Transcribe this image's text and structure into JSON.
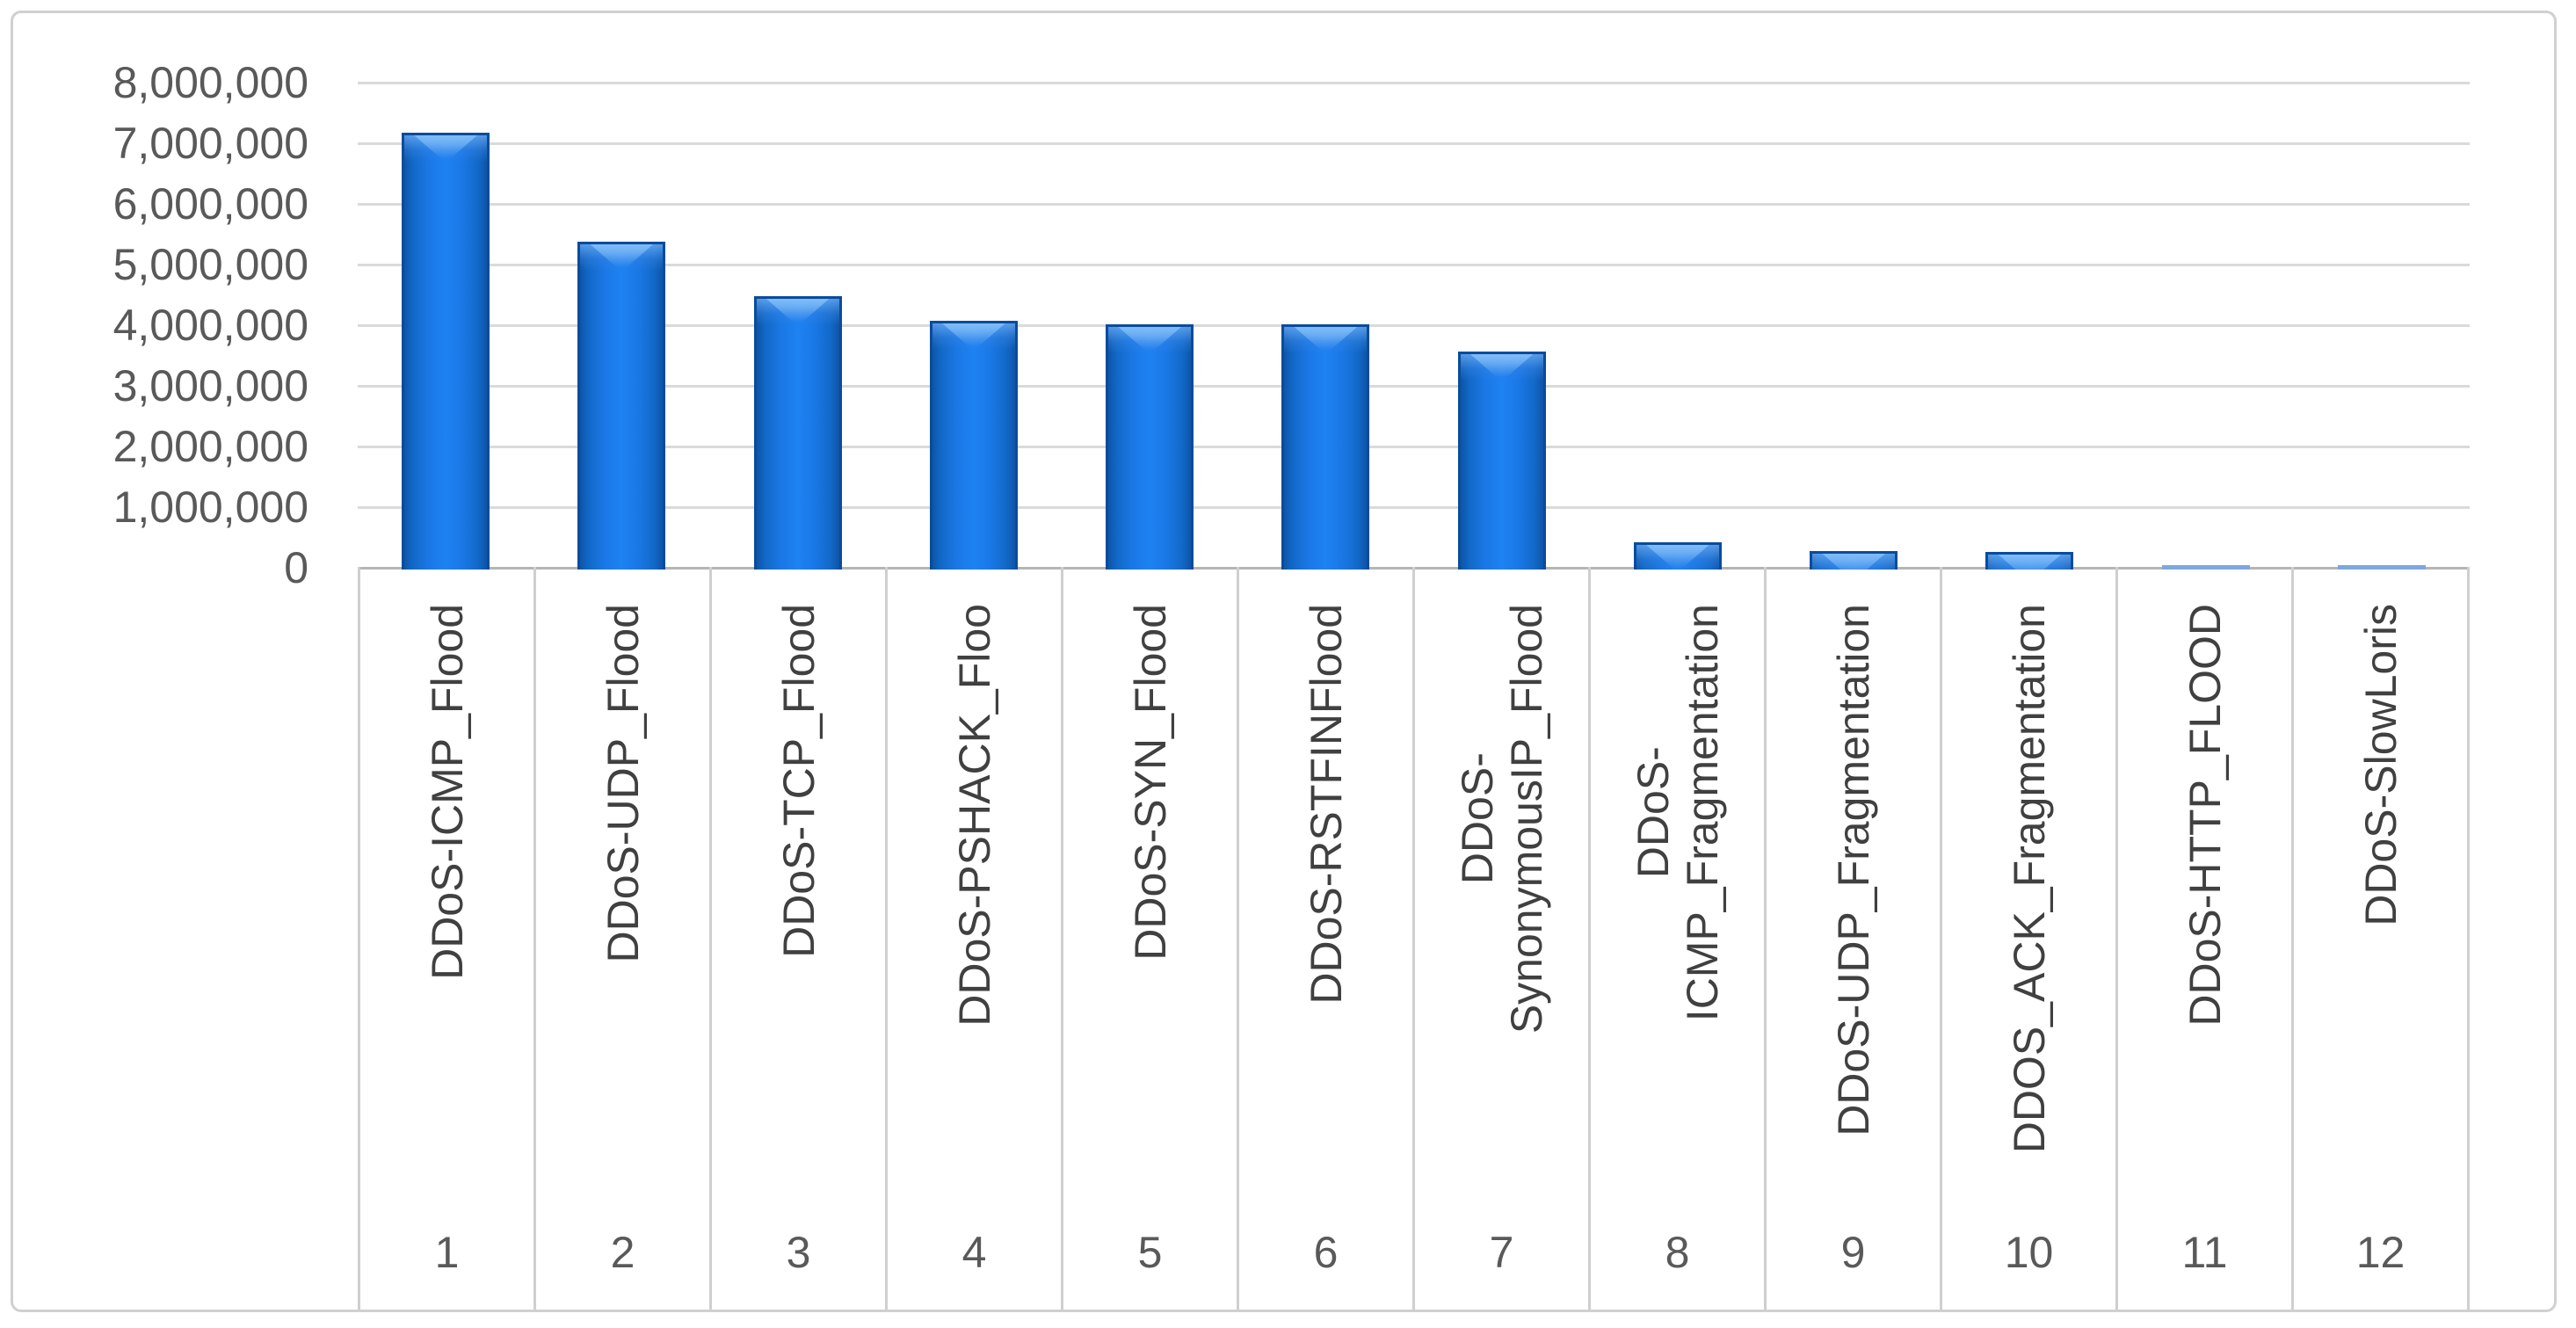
{
  "chart_data": {
    "type": "bar",
    "title": "",
    "categories": [
      {
        "index": "1",
        "label": "DDoS-ICMP_Flood",
        "value": 7200000
      },
      {
        "index": "2",
        "label": "DDoS-UDP_Flood",
        "value": 5400000
      },
      {
        "index": "3",
        "label": "DDoS-TCP_Flood",
        "value": 4500000
      },
      {
        "index": "4",
        "label": "DDoS-PSHACK_Floo",
        "value": 4100000
      },
      {
        "index": "5",
        "label": "DDoS-SYN_Flood",
        "value": 4050000
      },
      {
        "index": "6",
        "label": "DDoS-RSTFINFlood",
        "value": 4050000
      },
      {
        "index": "7",
        "label": "DDoS-\nSynonymousIP_Flood",
        "value": 3600000
      },
      {
        "index": "8",
        "label": "DDoS-\nICMP_Fragmentation",
        "value": 450000
      },
      {
        "index": "9",
        "label": "DDoS-UDP_Fragmentation",
        "value": 300000
      },
      {
        "index": "10",
        "label": "DDOS_ACK_Fragmentation",
        "value": 285000
      },
      {
        "index": "11",
        "label": "DDoS-HTTP_FLOOD",
        "value": 30000
      },
      {
        "index": "12",
        "label": "DDoS-SlowLoris",
        "value": 25000
      }
    ],
    "y_axis": {
      "tick_labels": [
        "8,000,000",
        "7,000,000",
        "6,000,000",
        "5,000,000",
        "4,000,000",
        "3,000,000",
        "2,000,000",
        "1,000,000",
        "0"
      ],
      "tick_values": [
        8000000,
        7000000,
        6000000,
        5000000,
        4000000,
        3000000,
        2000000,
        1000000,
        0
      ],
      "min": 0,
      "max": 8000000
    },
    "grid": true,
    "legend": "none",
    "small_value_threshold": 100000,
    "colors": {
      "bar_fill_center": "#1e82f2",
      "bar_fill_edge": "#0d55a8",
      "bar_outline": "#0a4c9b",
      "bar_bevel_highlight": "#7fbcf8",
      "thin_bar": "#7da7dd",
      "gridline": "#dadada",
      "axis_line": "#b5b5b5",
      "cell_border": "#cfcfcf",
      "frame_border": "#d0d0d0",
      "tick_text": "#595959",
      "category_text": "#404040"
    }
  }
}
